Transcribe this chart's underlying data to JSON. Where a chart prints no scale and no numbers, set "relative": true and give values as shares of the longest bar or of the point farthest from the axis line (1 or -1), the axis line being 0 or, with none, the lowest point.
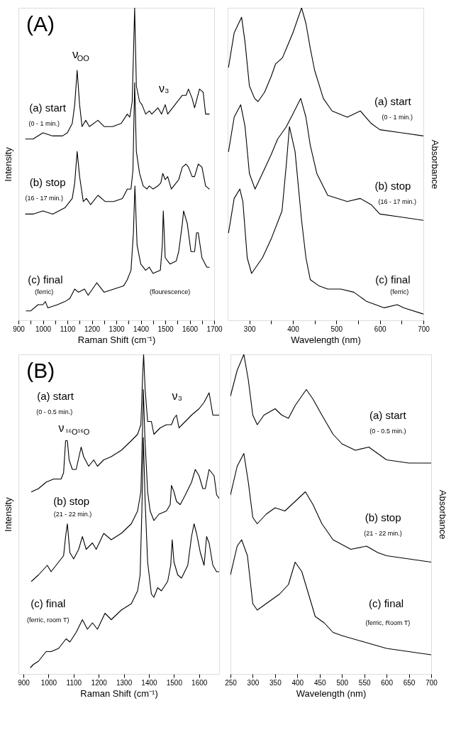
{
  "chart_data": [
    {
      "type": "line",
      "relative": true,
      "xlabel": "Raman Shift (cm⁻¹)",
      "ylabel": "Intensity",
      "xlim": [
        900,
        1700
      ],
      "xticks": [
        900,
        {
          "value": 950,
          "label": null
        },
        1000,
        {
          "value": 1050,
          "label": null
        },
        1100,
        {
          "value": 1150,
          "label": null
        },
        1200,
        {
          "value": 1250,
          "label": null
        },
        1300,
        {
          "value": 1350,
          "label": null
        },
        1400,
        {
          "value": 1450,
          "label": null
        },
        1500,
        {
          "value": 1550,
          "label": null
        },
        1600,
        {
          "value": 1650,
          "label": null
        },
        1700
      ],
      "tick_labels": "x",
      "series": [
        {
          "color": "#000000",
          "x": [
            929,
            960,
            1000,
            1040,
            1080,
            1100,
            1120,
            1130,
            1140,
            1150,
            1160,
            1175,
            1190,
            1225,
            1250,
            1285,
            1320,
            1345,
            1355,
            1365,
            1375,
            1382,
            1395,
            1405,
            1420,
            1435,
            1445,
            1470,
            1485,
            1500,
            1510,
            1540,
            1570,
            1585,
            1595,
            1610,
            1620,
            1640,
            1655,
            1665,
            1680
          ],
          "values": [
            0.58,
            0.58,
            0.6,
            0.59,
            0.59,
            0.6,
            0.63,
            0.69,
            0.8,
            0.69,
            0.62,
            0.64,
            0.62,
            0.64,
            0.62,
            0.62,
            0.63,
            0.66,
            0.65,
            0.7,
            1.0,
            0.75,
            0.7,
            0.69,
            0.66,
            0.67,
            0.66,
            0.68,
            0.66,
            0.69,
            0.66,
            0.69,
            0.72,
            0.72,
            0.74,
            0.71,
            0.68,
            0.74,
            0.73,
            0.66,
            0.66
          ]
        },
        {
          "color": "#000000",
          "x": [
            929,
            960,
            1000,
            1040,
            1090,
            1120,
            1130,
            1140,
            1150,
            1165,
            1178,
            1195,
            1225,
            1255,
            1290,
            1325,
            1345,
            1360,
            1368,
            1375,
            1382,
            1395,
            1410,
            1425,
            1435,
            1450,
            1470,
            1482,
            1490,
            1500,
            1510,
            1525,
            1555,
            1570,
            1585,
            1595,
            1610,
            1620,
            1635,
            1650,
            1665,
            1680
          ],
          "values": [
            0.34,
            0.34,
            0.35,
            0.34,
            0.36,
            0.39,
            0.44,
            0.54,
            0.46,
            0.38,
            0.39,
            0.37,
            0.4,
            0.38,
            0.38,
            0.39,
            0.42,
            0.42,
            0.48,
            0.76,
            0.54,
            0.47,
            0.43,
            0.42,
            0.43,
            0.42,
            0.43,
            0.44,
            0.47,
            0.45,
            0.46,
            0.42,
            0.45,
            0.49,
            0.5,
            0.49,
            0.46,
            0.46,
            0.5,
            0.49,
            0.43,
            0.42
          ]
        },
        {
          "color": "#000000",
          "x": [
            932,
            950,
            980,
            1000,
            1010,
            1020,
            1060,
            1090,
            1110,
            1130,
            1145,
            1170,
            1185,
            1220,
            1250,
            1290,
            1330,
            1345,
            1360,
            1370,
            1376,
            1385,
            1400,
            1420,
            1435,
            1450,
            1480,
            1488,
            1492,
            1500,
            1520,
            1545,
            1555,
            1570,
            1575,
            1590,
            1605,
            1620,
            1628,
            1635,
            1650,
            1670,
            1680
          ],
          "values": [
            0.03,
            0.03,
            0.05,
            0.05,
            0.06,
            0.04,
            0.05,
            0.06,
            0.07,
            0.1,
            0.09,
            0.1,
            0.08,
            0.12,
            0.09,
            0.1,
            0.11,
            0.13,
            0.16,
            0.28,
            0.43,
            0.24,
            0.18,
            0.16,
            0.17,
            0.15,
            0.16,
            0.24,
            0.35,
            0.2,
            0.18,
            0.19,
            0.22,
            0.31,
            0.35,
            0.31,
            0.22,
            0.22,
            0.28,
            0.28,
            0.2,
            0.17,
            0.17
          ]
        }
      ],
      "annotations": [
        "(A)",
        "ν$_{OO}$",
        "ν₃",
        "(a) start",
        "(0 - 1 min.)",
        "(b) stop",
        "(16 - 17 min.)",
        "(c) final",
        "(ferric)",
        "(flourescence)"
      ]
    },
    {
      "type": "line",
      "relative": true,
      "xlabel": "Wavelength (nm)",
      "y2label": "Absorbance",
      "xlim": [
        250,
        700
      ],
      "xticks": [
        300,
        {
          "value": 350,
          "label": null
        },
        400,
        {
          "value": 450,
          "label": null
        },
        500,
        {
          "value": 550,
          "label": null
        },
        600,
        {
          "value": 650,
          "label": null
        },
        700
      ],
      "tick_labels": "x",
      "series": [
        {
          "color": "#000000",
          "axis": "y2",
          "x": [
            252,
            265,
            282,
            290,
            300,
            312,
            320,
            335,
            350,
            360,
            376,
            385,
            400,
            420,
            430,
            440,
            450,
            470,
            490,
            525,
            555,
            580,
            600,
            650,
            700
          ],
          "values": [
            0.81,
            0.92,
            0.97,
            0.89,
            0.75,
            0.71,
            0.7,
            0.73,
            0.78,
            0.82,
            0.84,
            0.87,
            0.92,
            1.0,
            0.95,
            0.87,
            0.8,
            0.71,
            0.67,
            0.65,
            0.67,
            0.63,
            0.61,
            0.6,
            0.59
          ]
        },
        {
          "color": "#000000",
          "axis": "y2",
          "x": [
            252,
            265,
            280,
            290,
            300,
            313,
            330,
            350,
            365,
            385,
            400,
            418,
            430,
            440,
            455,
            480,
            525,
            555,
            580,
            600,
            650,
            700
          ],
          "values": [
            0.54,
            0.65,
            0.69,
            0.62,
            0.47,
            0.42,
            0.47,
            0.53,
            0.58,
            0.62,
            0.66,
            0.71,
            0.65,
            0.56,
            0.47,
            0.4,
            0.38,
            0.39,
            0.37,
            0.34,
            0.33,
            0.32
          ]
        },
        {
          "color": "#000000",
          "axis": "y2",
          "x": [
            252,
            265,
            278,
            285,
            295,
            305,
            330,
            350,
            375,
            385,
            392,
            405,
            420,
            430,
            440,
            460,
            480,
            510,
            540,
            570,
            610,
            640,
            655,
            700
          ],
          "values": [
            0.28,
            0.39,
            0.42,
            0.38,
            0.2,
            0.15,
            0.2,
            0.26,
            0.35,
            0.5,
            0.62,
            0.54,
            0.32,
            0.2,
            0.13,
            0.11,
            0.1,
            0.1,
            0.09,
            0.06,
            0.04,
            0.05,
            0.04,
            0.02
          ]
        }
      ],
      "annotations": [
        "(a) start",
        "(0 - 1 min.)",
        "(b) stop",
        "(16 - 17 min.)",
        "(c) final",
        "(ferric)"
      ]
    },
    {
      "type": "line",
      "relative": true,
      "xlabel": "Raman Shift (cm⁻¹)",
      "ylabel": "Intensity",
      "xlim": [
        880,
        1680
      ],
      "xticks": [
        900,
        1000,
        1100,
        1200,
        1300,
        1400,
        1500,
        1600
      ],
      "tick_labels": "x",
      "series": [
        {
          "color": "#000000",
          "x": [
            932,
            960,
            990,
            1020,
            1050,
            1060,
            1068,
            1075,
            1082,
            1095,
            1110,
            1130,
            1140,
            1160,
            1180,
            1195,
            1220,
            1250,
            1290,
            1330,
            1355,
            1368,
            1375,
            1379,
            1385,
            1395,
            1410,
            1420,
            1445,
            1470,
            1490,
            1500,
            1510,
            1520,
            1545,
            1570,
            1585,
            1600,
            1620,
            1640,
            1655,
            1680
          ],
          "values": [
            0.57,
            0.58,
            0.6,
            0.61,
            0.61,
            0.63,
            0.73,
            0.73,
            0.67,
            0.64,
            0.64,
            0.71,
            0.68,
            0.65,
            0.67,
            0.65,
            0.67,
            0.68,
            0.7,
            0.73,
            0.75,
            0.78,
            0.93,
            1.0,
            0.89,
            0.79,
            0.79,
            0.75,
            0.77,
            0.78,
            0.78,
            0.8,
            0.81,
            0.77,
            0.79,
            0.81,
            0.82,
            0.83,
            0.85,
            0.88,
            0.81,
            0.81
          ]
        },
        {
          "color": "#000000",
          "x": [
            932,
            960,
            995,
            1010,
            1040,
            1060,
            1068,
            1075,
            1085,
            1100,
            1120,
            1135,
            1150,
            1175,
            1190,
            1220,
            1250,
            1290,
            1330,
            1355,
            1368,
            1375,
            1378,
            1384,
            1395,
            1405,
            1420,
            1440,
            1470,
            1485,
            1490,
            1500,
            1510,
            1525,
            1545,
            1570,
            1585,
            1600,
            1615,
            1625,
            1640,
            1660,
            1670,
            1680
          ],
          "values": [
            0.29,
            0.31,
            0.34,
            0.32,
            0.35,
            0.37,
            0.43,
            0.47,
            0.38,
            0.36,
            0.39,
            0.43,
            0.39,
            0.41,
            0.39,
            0.44,
            0.42,
            0.44,
            0.47,
            0.51,
            0.57,
            0.78,
            0.89,
            0.74,
            0.57,
            0.51,
            0.48,
            0.5,
            0.51,
            0.53,
            0.59,
            0.57,
            0.54,
            0.53,
            0.56,
            0.6,
            0.64,
            0.62,
            0.58,
            0.58,
            0.64,
            0.62,
            0.56,
            0.55
          ]
        },
        {
          "color": "#000000",
          "x": [
            928,
            940,
            960,
            990,
            1010,
            1040,
            1060,
            1070,
            1085,
            1110,
            1135,
            1155,
            1175,
            1195,
            1225,
            1250,
            1290,
            1330,
            1355,
            1365,
            1372,
            1378,
            1385,
            1395,
            1410,
            1420,
            1435,
            1450,
            1475,
            1487,
            1493,
            1500,
            1515,
            1530,
            1555,
            1570,
            1580,
            1590,
            1605,
            1620,
            1630,
            1640,
            1655,
            1670,
            1680
          ],
          "values": [
            0.02,
            0.03,
            0.04,
            0.07,
            0.07,
            0.08,
            0.1,
            0.11,
            0.1,
            0.13,
            0.17,
            0.14,
            0.16,
            0.14,
            0.19,
            0.17,
            0.2,
            0.22,
            0.26,
            0.31,
            0.51,
            0.74,
            0.54,
            0.35,
            0.25,
            0.24,
            0.27,
            0.26,
            0.29,
            0.34,
            0.42,
            0.35,
            0.31,
            0.3,
            0.34,
            0.43,
            0.47,
            0.44,
            0.38,
            0.34,
            0.43,
            0.41,
            0.34,
            0.32,
            0.32
          ]
        }
      ],
      "annotations": [
        "(B)",
        "(a) start",
        "(0 - 0.5 min.)",
        "ν$_{¹⁶O¹⁶O}$",
        "ν₃",
        "(b) stop",
        "(21 - 22 min.)",
        "(c) final",
        "(ferric, room T)"
      ]
    },
    {
      "type": "line",
      "relative": true,
      "xlabel": "Wavelength (nm)",
      "y2label": "Absorbance",
      "xlim": [
        250,
        700
      ],
      "xticks": [
        250,
        300,
        350,
        400,
        450,
        500,
        550,
        600,
        650,
        700
      ],
      "tick_labels": "x",
      "series": [
        {
          "color": "#000000",
          "axis": "y2",
          "x": [
            250,
            265,
            280,
            290,
            300,
            310,
            325,
            350,
            365,
            380,
            395,
            420,
            435,
            455,
            480,
            500,
            530,
            560,
            580,
            600,
            650,
            700
          ],
          "values": [
            0.87,
            0.95,
            1.0,
            0.92,
            0.81,
            0.78,
            0.81,
            0.83,
            0.81,
            0.8,
            0.84,
            0.89,
            0.86,
            0.81,
            0.75,
            0.72,
            0.7,
            0.71,
            0.69,
            0.67,
            0.66,
            0.66
          ]
        },
        {
          "color": "#000000",
          "axis": "y2",
          "x": [
            250,
            265,
            280,
            290,
            300,
            310,
            330,
            350,
            372,
            395,
            418,
            435,
            455,
            480,
            520,
            555,
            580,
            600,
            650,
            700
          ],
          "values": [
            0.56,
            0.65,
            0.69,
            0.6,
            0.49,
            0.47,
            0.5,
            0.52,
            0.51,
            0.54,
            0.57,
            0.53,
            0.47,
            0.42,
            0.39,
            0.4,
            0.38,
            0.37,
            0.36,
            0.35
          ]
        },
        {
          "color": "#000000",
          "axis": "y2",
          "x": [
            250,
            265,
            275,
            288,
            300,
            310,
            330,
            360,
            380,
            395,
            410,
            425,
            440,
            460,
            480,
            500,
            550,
            600,
            650,
            700
          ],
          "values": [
            0.31,
            0.4,
            0.42,
            0.37,
            0.22,
            0.2,
            0.22,
            0.25,
            0.28,
            0.35,
            0.32,
            0.25,
            0.18,
            0.16,
            0.13,
            0.12,
            0.1,
            0.08,
            0.07,
            0.06
          ]
        }
      ],
      "annotations": [
        "(a) start",
        "(0 - 0.5 min.)",
        "(b) stop",
        "(21 - 22 min.)",
        "(c) final",
        "(ferric, Room T)"
      ]
    }
  ]
}
